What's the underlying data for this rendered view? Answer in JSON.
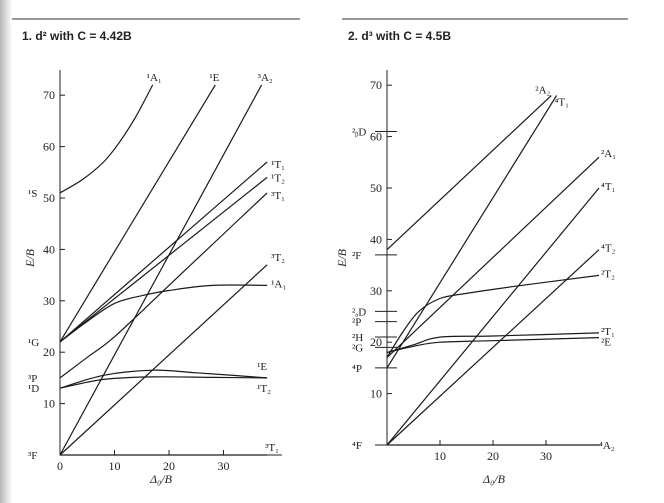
{
  "chart_data": [
    {
      "type": "line",
      "title": "1. d² with C = 4.42B",
      "xlabel": "Δ₀/B",
      "ylabel": "E/B",
      "xlim": [
        0,
        39
      ],
      "ylim": [
        0,
        77
      ],
      "xticks": [
        0,
        10,
        20,
        30
      ],
      "yticks": [
        10,
        20,
        30,
        40,
        50,
        60,
        70
      ],
      "grid": false,
      "left_labels": [
        {
          "text": "¹S",
          "y": 51
        },
        {
          "text": "¹G",
          "y": 22
        },
        {
          "text": "³P",
          "y": 15
        },
        {
          "text": "¹D",
          "y": 13
        },
        {
          "text": "³F",
          "y": 0
        }
      ],
      "series": [
        {
          "name": "¹A₁",
          "points": [
            [
              0,
              51
            ],
            [
              4,
              53.5
            ],
            [
              8,
              57
            ],
            [
              11,
              61
            ],
            [
              14,
              66
            ],
            [
              17,
              72
            ]
          ]
        },
        {
          "name": "¹E",
          "points": [
            [
              0,
              22
            ],
            [
              28.5,
              72
            ]
          ]
        },
        {
          "name": "³A₂",
          "points": [
            [
              0,
              0
            ],
            [
              37,
              72
            ]
          ]
        },
        {
          "name": "¹T₁",
          "points": [
            [
              0,
              22
            ],
            [
              38,
              57
            ]
          ]
        },
        {
          "name": "¹T₂",
          "points": [
            [
              0,
              22
            ],
            [
              38,
              54
            ]
          ]
        },
        {
          "name": "³T₁",
          "points": [
            [
              0,
              15
            ],
            [
              5,
              19
            ],
            [
              10,
              23
            ],
            [
              20,
              33
            ],
            [
              30,
              43
            ],
            [
              38,
              51
            ]
          ]
        },
        {
          "name": "³T₂",
          "points": [
            [
              0,
              0
            ],
            [
              38,
              37
            ]
          ]
        },
        {
          "name": "¹A₁",
          "points": [
            [
              0,
              22
            ],
            [
              5,
              26
            ],
            [
              10,
              29.5
            ],
            [
              15,
              31
            ],
            [
              20,
              32
            ],
            [
              28,
              33
            ],
            [
              38,
              33
            ]
          ]
        },
        {
          "name": "¹E",
          "points": [
            [
              0,
              13
            ],
            [
              8,
              15.5
            ],
            [
              17,
              16.5
            ],
            [
              25,
              16
            ],
            [
              38,
              15
            ]
          ]
        },
        {
          "name": "¹T₂",
          "points": [
            [
              0,
              13
            ],
            [
              8,
              14.7
            ],
            [
              17,
              15.2
            ],
            [
              28,
              15.1
            ],
            [
              38,
              15
            ]
          ]
        },
        {
          "name": "³T₁",
          "points": [
            [
              0,
              0
            ],
            [
              38,
              0
            ]
          ]
        }
      ]
    },
    {
      "type": "line",
      "title": "2. d³ with C = 4.5B",
      "xlabel": "Δ₀/B",
      "ylabel": "E/B",
      "xlim": [
        0,
        43
      ],
      "ylim": [
        0,
        73
      ],
      "xticks": [
        10,
        20,
        30
      ],
      "yticks": [
        10,
        20,
        30,
        40,
        50,
        60,
        70
      ],
      "grid": false,
      "left_labels": [
        {
          "text": "²ᵦD",
          "y": 61
        },
        {
          "text": "²F",
          "y": 37
        },
        {
          "text": "²ₐD",
          "y": 26
        },
        {
          "text": "²P",
          "y": 24
        },
        {
          "text": "²H",
          "y": 21
        },
        {
          "text": "²G",
          "y": 19
        },
        {
          "text": "⁴P",
          "y": 15
        },
        {
          "text": "⁴F",
          "y": 0
        }
      ],
      "series": [
        {
          "name": "²A₂",
          "points": [
            [
              0,
              38
            ],
            [
              31,
              68
            ]
          ]
        },
        {
          "name": "⁴T₁",
          "points": [
            [
              0,
              15
            ],
            [
              32,
              68
            ]
          ]
        },
        {
          "name": "²A₁",
          "points": [
            [
              0,
              17
            ],
            [
              40,
              56
            ]
          ]
        },
        {
          "name": "⁴T₁",
          "points": [
            [
              0,
              0
            ],
            [
              40,
              50
            ]
          ]
        },
        {
          "name": "⁴T₂",
          "points": [
            [
              0,
              0
            ],
            [
              40,
              38
            ]
          ]
        },
        {
          "name": "²T₂",
          "points": [
            [
              0,
              17
            ],
            [
              3,
              22
            ],
            [
              6,
              26
            ],
            [
              10,
              28.5
            ],
            [
              15,
              29.5
            ],
            [
              25,
              31
            ],
            [
              40,
              33
            ]
          ]
        },
        {
          "name": "²T₁",
          "points": [
            [
              0,
              18
            ],
            [
              5,
              19.5
            ],
            [
              10,
              21
            ],
            [
              20,
              21.2
            ],
            [
              40,
              21.8
            ]
          ]
        },
        {
          "name": "²E",
          "points": [
            [
              0,
              18
            ],
            [
              5,
              19.2
            ],
            [
              10,
              20
            ],
            [
              20,
              20.3
            ],
            [
              40,
              20.9
            ]
          ]
        },
        {
          "name": "⁴A₂",
          "points": [
            [
              0,
              0
            ],
            [
              40,
              0
            ]
          ]
        }
      ]
    }
  ]
}
